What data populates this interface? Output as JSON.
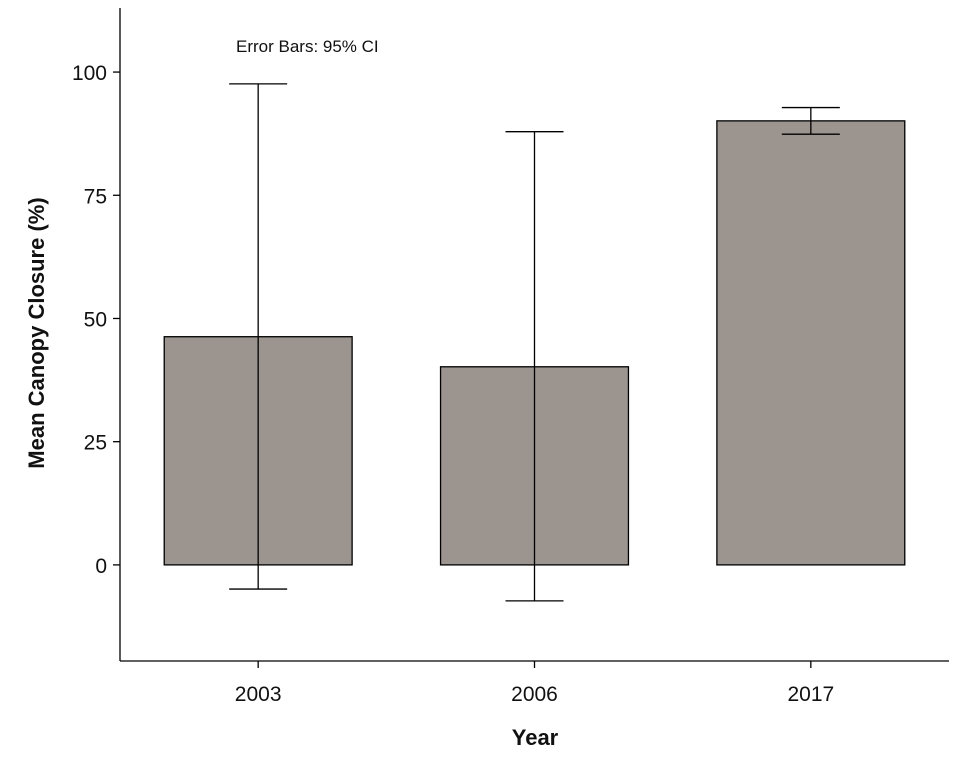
{
  "chart_data": {
    "type": "bar",
    "title": "",
    "annotation": "Error Bars: 95% CI",
    "xlabel": "Year",
    "ylabel": "Mean Canopy Closure (%)",
    "categories": [
      "2003",
      "2006",
      "2017"
    ],
    "values": [
      46.3,
      40.2,
      90.1
    ],
    "error_low": [
      -4.9,
      -7.3,
      87.4
    ],
    "error_high": [
      97.6,
      87.9,
      92.8
    ],
    "ylim": [
      -19.5,
      113
    ],
    "yticks": [
      0,
      25,
      50,
      75,
      100
    ],
    "bar_color": "#9c948f",
    "grid": false,
    "legend": "none"
  }
}
